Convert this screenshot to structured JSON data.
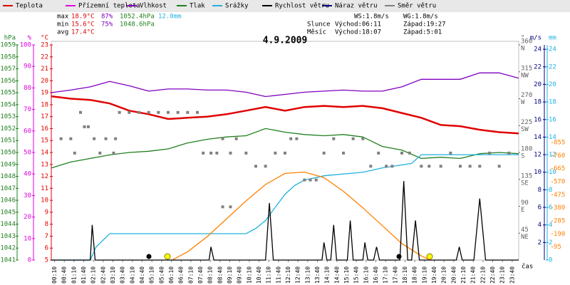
{
  "chart_data": {
    "type": "weather",
    "title": "4.9.2009",
    "legend": [
      {
        "name": "Teplota",
        "color": "#e00000"
      },
      {
        "name": "Přízemní teplota",
        "color": "#e000e0"
      },
      {
        "name": "Vlhkost",
        "color": "#8000c0"
      },
      {
        "name": "Tlak",
        "color": "#208020"
      },
      {
        "name": "Srážky",
        "color": "#20b0e0"
      },
      {
        "name": "Rychlost větru",
        "color": "#000000"
      },
      {
        "name": "Náraz větru",
        "color": "#000080"
      },
      {
        "name": "Směr větru",
        "color": "#808080"
      }
    ],
    "stats": [
      [
        "max",
        "18.9°C",
        "87%",
        "1052.4hPa",
        "12.0mm"
      ],
      [
        "min",
        "15.6°C",
        "75%",
        "1048.6hPa"
      ],
      [
        "avg",
        "17.4°C"
      ]
    ],
    "info": [
      [
        "WS:1.8m/s",
        "WG:1.8m/s"
      ],
      [
        "Slunce",
        "Východ:06:11",
        "Západ:19:27"
      ],
      [
        "Měsíc",
        "Východ:18:07",
        "Západ:5:01"
      ]
    ],
    "xlim": [
      0,
      24
    ],
    "xlabel": "čas",
    "xtick_labels": [
      "00:10",
      "00:40",
      "01:10",
      "01:40",
      "02:10",
      "02:40",
      "03:10",
      "03:40",
      "04:10",
      "04:40",
      "05:10",
      "05:40",
      "06:10",
      "06:40",
      "07:10",
      "07:40",
      "08:10",
      "08:40",
      "09:10",
      "09:40",
      "10:10",
      "10:40",
      "11:10",
      "11:40",
      "12:10",
      "12:40",
      "13:10",
      "13:40",
      "14:10",
      "14:40",
      "15:10",
      "15:40",
      "16:10",
      "16:40",
      "17:10",
      "17:40",
      "18:10",
      "18:40",
      "19:10",
      "19:40",
      "20:10",
      "20:40",
      "21:10",
      "21:40",
      "22:10",
      "22:40",
      "23:10",
      "23:40"
    ],
    "axes": {
      "pres": {
        "label": "hPa",
        "color": "#208020",
        "lim": [
          1041,
          1059
        ],
        "ticks": [
          1041,
          1042,
          1043,
          1044,
          1045,
          1046,
          1047,
          1048,
          1049,
          1050,
          1051,
          1052,
          1053,
          1054,
          1055,
          1056,
          1057,
          1058,
          1059
        ]
      },
      "hum": {
        "label": "%",
        "color": "#e000e0",
        "lim": [
          0,
          100
        ],
        "ticks": [
          0,
          10,
          20,
          30,
          40,
          50,
          60,
          70,
          80,
          90,
          100
        ]
      },
      "temp": {
        "label": "°C",
        "color": "#e00000",
        "lim": [
          5,
          23
        ],
        "ticks": [
          5,
          6,
          7,
          8,
          9,
          10,
          11,
          12,
          13,
          14,
          15,
          16,
          17,
          18,
          19,
          20,
          21,
          22,
          23
        ]
      },
      "dir": {
        "label": "°",
        "color": "#606060",
        "lim": [
          0,
          360
        ],
        "ticks": [
          45,
          90,
          135,
          180,
          225,
          270,
          315,
          360
        ],
        "compass": [
          "NE",
          "E",
          "SE",
          "S",
          "SW",
          "W",
          "NW",
          "N"
        ]
      },
      "wind": {
        "label": "m/s",
        "color": "#000080",
        "lim": [
          0,
          24.5
        ],
        "ticks": [
          2,
          4,
          6,
          8,
          10,
          12,
          14,
          16,
          18,
          20,
          22,
          24
        ]
      },
      "rain": {
        "label": "mm",
        "color": "#20b0e0",
        "lim": [
          0,
          24.5
        ],
        "ticks": [
          0,
          2,
          4,
          6,
          8,
          10,
          12,
          14,
          16,
          18,
          20,
          22,
          24
        ]
      },
      "solar": {
        "color": "#ff8000",
        "lim": [
          0,
          1565
        ],
        "ticks": [
          95,
          190,
          285,
          380,
          475,
          570,
          665,
          760,
          855
        ]
      }
    },
    "series": [
      {
        "kind": "line",
        "axis": "hum",
        "color": "#8000c0",
        "x": [
          0,
          1,
          2,
          3,
          4,
          5,
          6,
          7,
          8,
          9,
          10,
          11,
          12,
          13,
          14,
          15,
          16,
          17,
          18,
          19,
          20,
          21,
          22,
          23,
          24
        ],
        "values": [
          77.8,
          79,
          80.5,
          83,
          81,
          78.5,
          79.5,
          79.5,
          79,
          79,
          78,
          76,
          77,
          78,
          78.5,
          79,
          78.5,
          78.5,
          80.5,
          84,
          84,
          84,
          87,
          87,
          84.5
        ]
      },
      {
        "kind": "line",
        "axis": "temp",
        "color": "#e00000",
        "x": [
          0,
          1,
          2,
          3,
          4,
          5,
          6,
          7,
          8,
          9,
          10,
          11,
          12,
          13,
          14,
          15,
          16,
          17,
          18,
          19,
          20,
          21,
          22,
          23,
          24
        ],
        "values": [
          18.7,
          18.5,
          18.4,
          18.1,
          17.5,
          17.2,
          16.8,
          16.9,
          17.0,
          17.2,
          17.5,
          17.8,
          17.5,
          17.8,
          17.9,
          17.8,
          17.9,
          17.7,
          17.3,
          16.9,
          16.3,
          16.2,
          15.9,
          15.7,
          15.6
        ]
      },
      {
        "kind": "line",
        "axis": "pres",
        "color": "#208020",
        "x": [
          0,
          1,
          2,
          3,
          4,
          5,
          6,
          7,
          8,
          9,
          10,
          11,
          12,
          13,
          14,
          15,
          16,
          17,
          18,
          19,
          20,
          21,
          22,
          23,
          24
        ],
        "values": [
          1048.7,
          1049.2,
          1049.5,
          1049.8,
          1050.0,
          1050.1,
          1050.3,
          1050.8,
          1051.1,
          1051.3,
          1051.4,
          1052.0,
          1051.7,
          1051.5,
          1051.4,
          1051.5,
          1051.3,
          1050.5,
          1050.2,
          1049.5,
          1049.6,
          1049.5,
          1049.9,
          1050.0,
          1049.9
        ]
      },
      {
        "kind": "line",
        "axis": "rain",
        "color": "#20b0e0",
        "x": [
          0,
          2,
          2.3,
          3,
          10,
          10.5,
          11,
          11.5,
          12,
          12.5,
          13,
          14,
          16,
          17,
          18.5,
          19,
          24
        ],
        "values": [
          0,
          0,
          1.5,
          3,
          3,
          3.6,
          4.5,
          6,
          7.5,
          8.5,
          9.1,
          9.6,
          10,
          10.5,
          11,
          12,
          12
        ]
      },
      {
        "kind": "line",
        "axis": "solar",
        "color": "#ff8000",
        "x": [
          6.2,
          7,
          8,
          9,
          10,
          11,
          12,
          13,
          14,
          15,
          16,
          17,
          18,
          19,
          19.45
        ],
        "values": [
          0,
          60,
          170,
          300,
          430,
          550,
          630,
          640,
          600,
          500,
          380,
          250,
          120,
          30,
          0
        ]
      },
      {
        "kind": "line",
        "axis": "wind",
        "color": "#000000",
        "x": [
          0,
          2.0,
          2.1,
          2.25,
          8.1,
          8.2,
          8.35,
          11.0,
          11.2,
          11.4,
          13.9,
          14.0,
          14.15,
          14.35,
          14.5,
          14.65,
          15.2,
          15.35,
          15.5,
          16.0,
          16.1,
          16.25,
          16.55,
          16.7,
          16.85,
          17.9,
          18.1,
          18.3,
          18.5,
          18.7,
          18.9,
          20.8,
          20.95,
          21.1,
          21.7,
          22.0,
          22.3,
          24
        ],
        "values": [
          0,
          0,
          4,
          0,
          0,
          1.5,
          0,
          0,
          6.5,
          0,
          0,
          2,
          0,
          0,
          4,
          0,
          0,
          4.5,
          0,
          0,
          2,
          0,
          0,
          1.5,
          0,
          0,
          9,
          0,
          0,
          4.5,
          0,
          0,
          1.5,
          0,
          0,
          7,
          0,
          0
        ]
      },
      {
        "kind": "points",
        "axis": "dir",
        "color": "#808080",
        "x": [
          0.5,
          1,
          1.2,
          1.5,
          1.7,
          1.9,
          2.2,
          2.5,
          2.8,
          3.2,
          3.3,
          3.5,
          4,
          4.5,
          5,
          5.5,
          6,
          6.5,
          7,
          7.5,
          7.8,
          8.2,
          8.5,
          8.8,
          8.8,
          9.2,
          9.2,
          9.5,
          10,
          10.5,
          11,
          11.5,
          12,
          12.3,
          12.6,
          13,
          13.3,
          13.6,
          14,
          14.5,
          15,
          15.5,
          16,
          16.4,
          16.8,
          17.2,
          17.5,
          18,
          18.4,
          19,
          19.4,
          20,
          20.5,
          21,
          21.5,
          22,
          22.5,
          23,
          23.5
        ],
        "values": [
          203,
          203,
          179,
          247,
          223,
          223,
          203,
          179,
          203,
          179,
          203,
          247,
          247,
          247,
          247,
          247,
          247,
          247,
          247,
          247,
          179,
          179,
          179,
          203,
          89,
          179,
          89,
          203,
          179,
          157,
          157,
          179,
          179,
          203,
          203,
          134,
          134,
          134,
          179,
          203,
          179,
          203,
          203,
          157,
          179,
          157,
          157,
          179,
          179,
          157,
          157,
          157,
          179,
          157,
          157,
          157,
          179,
          157,
          179
        ]
      }
    ]
  }
}
